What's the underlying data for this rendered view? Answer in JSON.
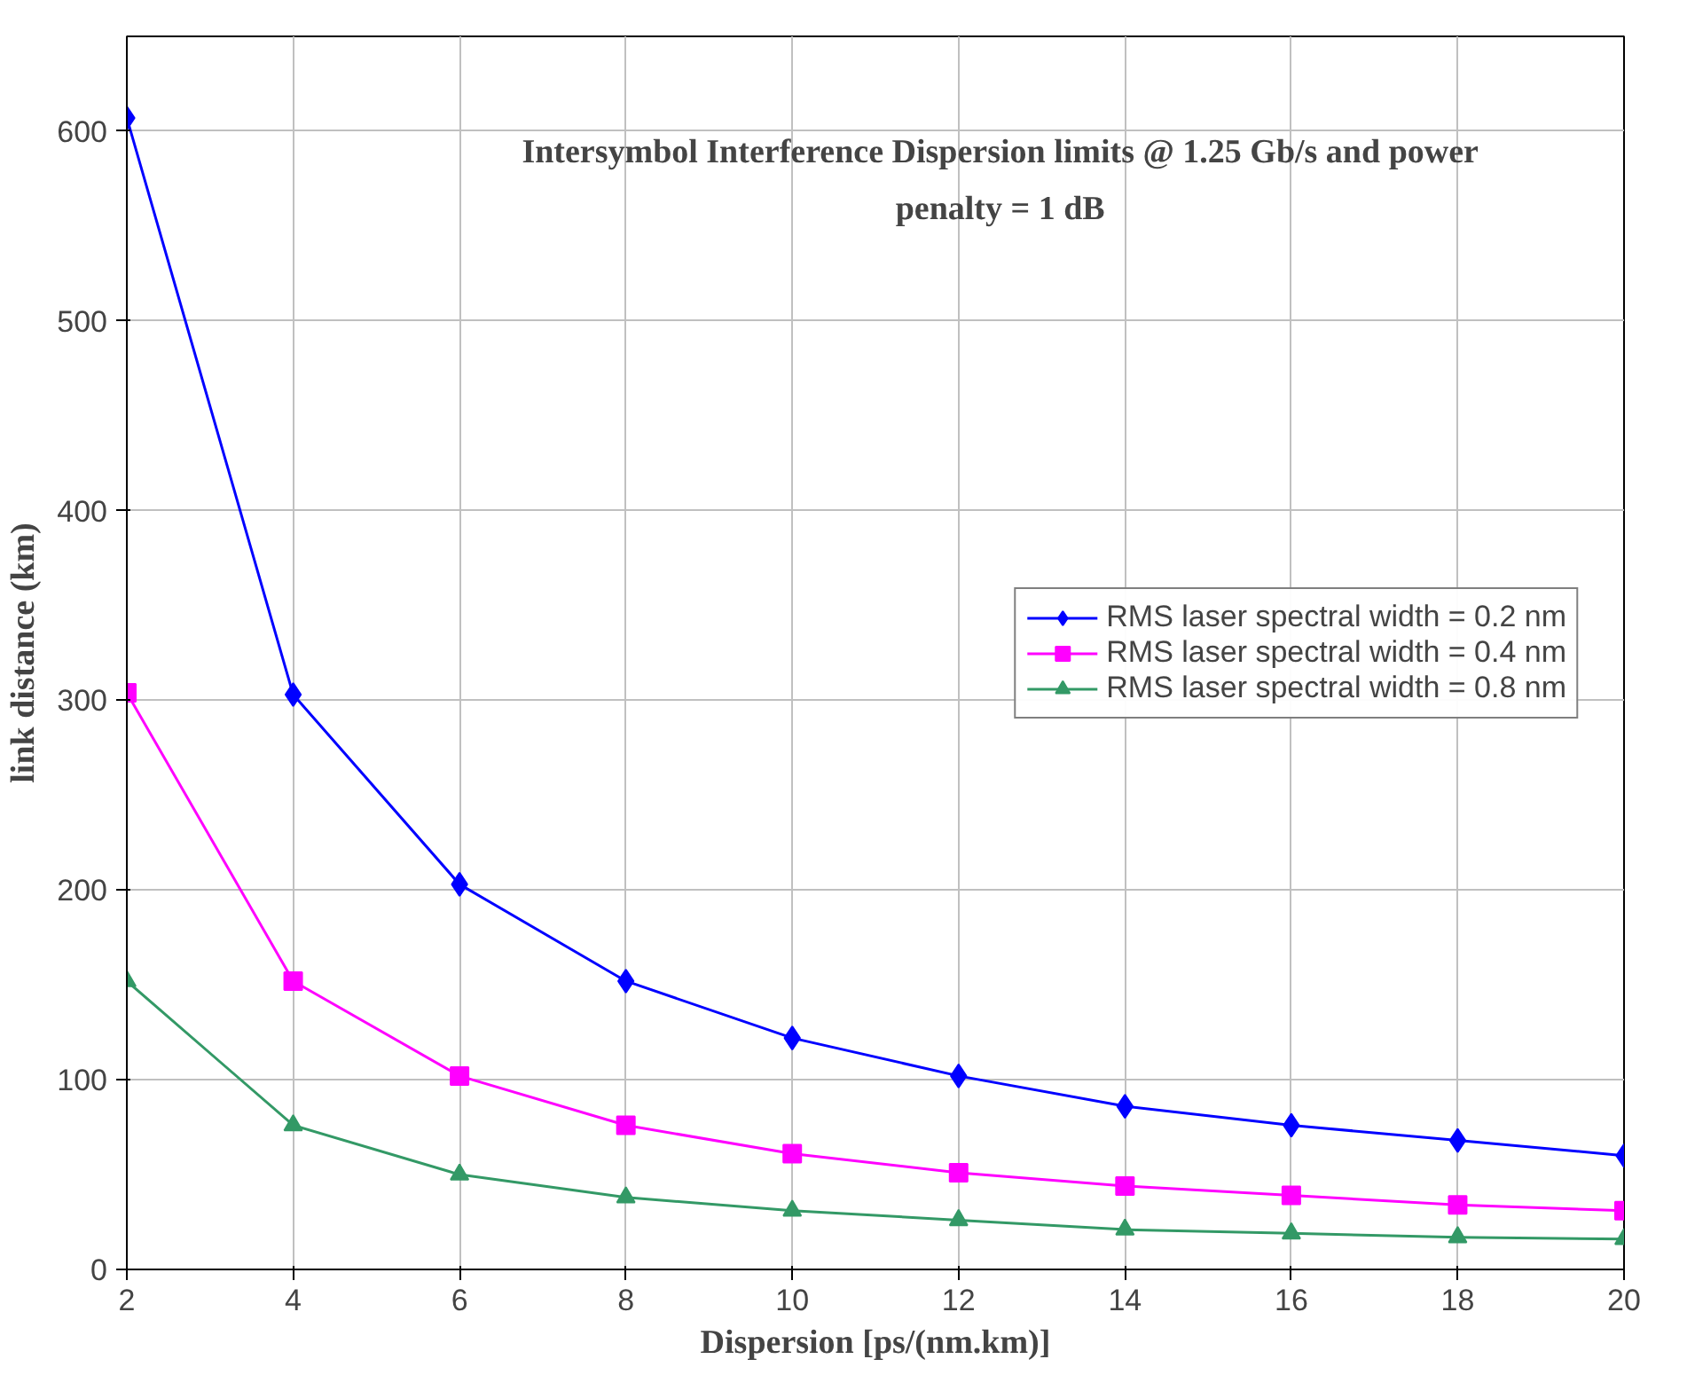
{
  "chart_data": {
    "type": "line",
    "title": "Intersymbol Interference Dispersion limits @ 1.25 Gb/s and power penalty = 1 dB",
    "xlabel": "Dispersion [ps/(nm.km)]",
    "ylabel": "link distance (km)",
    "x": [
      2,
      4,
      6,
      8,
      10,
      12,
      14,
      16,
      18,
      20
    ],
    "series": [
      {
        "name": "RMS laser spectral width = 0.2 nm",
        "color": "#0000ff",
        "marker": "diamond",
        "values": [
          607,
          303,
          203,
          152,
          122,
          102,
          86,
          76,
          68,
          60
        ]
      },
      {
        "name": "RMS laser spectral width = 0.4 nm",
        "color": "#ff00ff",
        "marker": "square",
        "values": [
          304,
          152,
          102,
          76,
          61,
          51,
          44,
          39,
          34,
          31
        ]
      },
      {
        "name": "RMS laser spectral width = 0.8 nm",
        "color": "#339966",
        "marker": "triangle",
        "values": [
          152,
          76,
          50,
          38,
          31,
          26,
          21,
          19,
          17,
          16
        ]
      }
    ],
    "xlim": [
      2,
      20
    ],
    "xticks": [
      2,
      4,
      6,
      8,
      10,
      12,
      14,
      16,
      18,
      20
    ],
    "ylim": [
      0,
      650
    ],
    "yticks": [
      0,
      100,
      200,
      300,
      400,
      500,
      600
    ],
    "grid": true,
    "legend": "right",
    "line_style": "solid"
  }
}
